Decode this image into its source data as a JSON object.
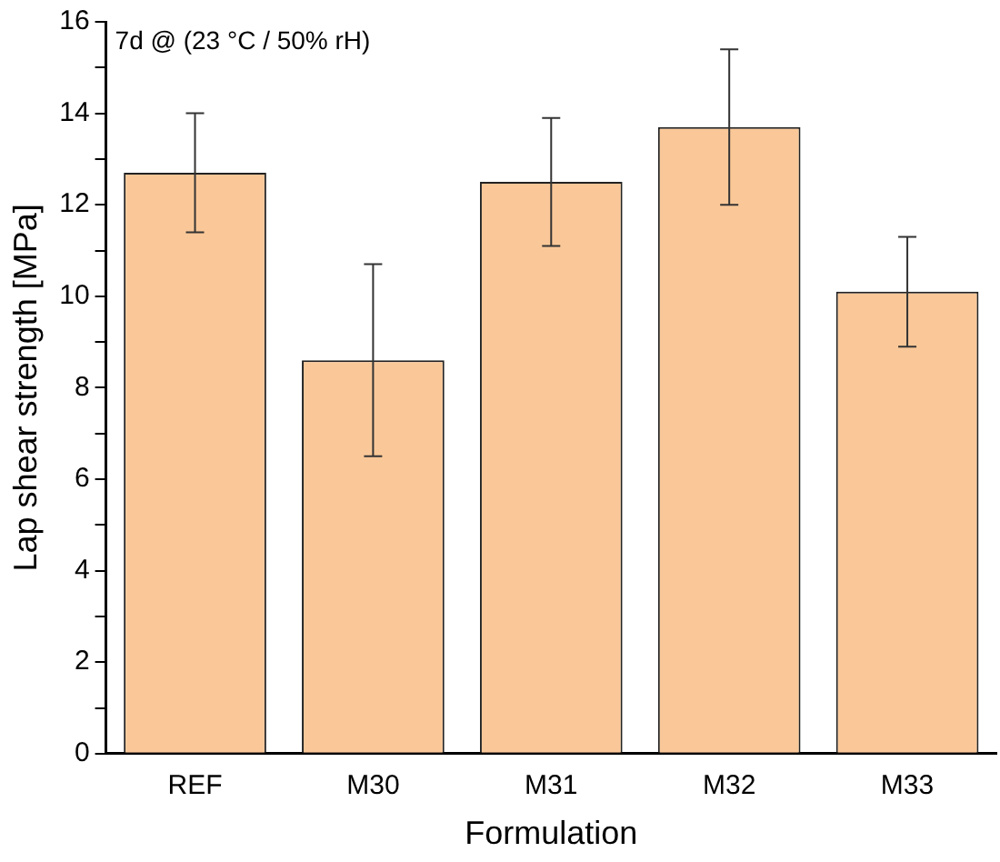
{
  "chart_data": {
    "type": "bar",
    "xlabel": "Formulation",
    "ylabel": "Lap shear strength [MPa]",
    "annotations": [
      "7d @ (23 °C / 50% rH)"
    ],
    "categories": [
      "REF",
      "M30",
      "M31",
      "M32",
      "M33"
    ],
    "values": [
      12.7,
      8.6,
      12.5,
      13.7,
      10.1
    ],
    "errors": [
      1.3,
      2.1,
      1.4,
      1.7,
      1.2
    ],
    "color": "#fac898",
    "ylim": [
      0,
      16
    ],
    "yticks": [
      0,
      {
        "value": 1,
        "label": null
      },
      2,
      {
        "value": 3,
        "label": null
      },
      4,
      {
        "value": 5,
        "label": null
      },
      6,
      {
        "value": 7,
        "label": null
      },
      8,
      {
        "value": 9,
        "label": null
      },
      10,
      {
        "value": 11,
        "label": null
      },
      12,
      {
        "value": 13,
        "label": null
      },
      14,
      {
        "value": 15,
        "label": null
      },
      16
    ],
    "grid": false,
    "legend": false
  }
}
